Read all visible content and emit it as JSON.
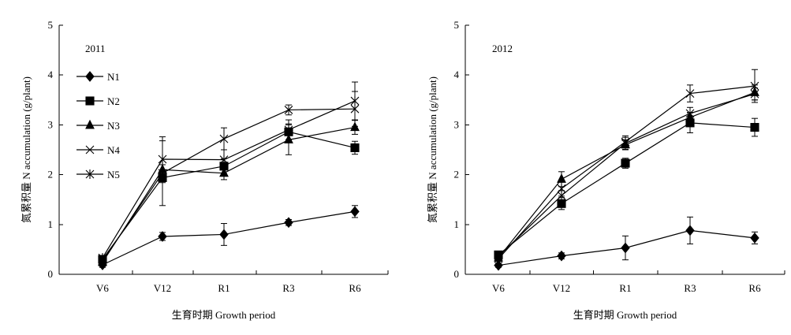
{
  "chart_data": [
    {
      "type": "line",
      "panel_label": "2011",
      "categories": [
        "V6",
        "V12",
        "R1",
        "R3",
        "R6"
      ],
      "xlabel": "生育时期 Growth period",
      "ylabel": "氮累积量 N accumulation (g/plant)",
      "ylim": [
        0,
        5
      ],
      "yticks": [
        "0",
        "1",
        "2",
        "3",
        "4",
        "5"
      ],
      "legend_position": "top-left",
      "series": [
        {
          "name": "N1",
          "marker": "diamond",
          "values": [
            0.19,
            0.76,
            0.8,
            1.04,
            1.26
          ],
          "errors": [
            0.05,
            0.08,
            0.22,
            0.06,
            0.12
          ]
        },
        {
          "name": "N2",
          "marker": "square",
          "values": [
            0.3,
            1.94,
            2.17,
            2.86,
            2.54
          ],
          "errors": [
            0.05,
            0.1,
            0.15,
            0.16,
            0.13
          ]
        },
        {
          "name": "N3",
          "marker": "triangle",
          "values": [
            0.24,
            2.1,
            2.03,
            2.7,
            2.95
          ],
          "errors": [
            0.05,
            0.1,
            0.13,
            0.3,
            0.14
          ]
        },
        {
          "name": "N4",
          "marker": "cross",
          "values": [
            0.27,
            2.03,
            2.72,
            3.3,
            3.32
          ],
          "errors": [
            0.05,
            0.65,
            0.22,
            0.1,
            0.35
          ]
        },
        {
          "name": "N5",
          "marker": "asterisk",
          "values": [
            0.33,
            2.31,
            2.3,
            2.9,
            3.48
          ],
          "errors": [
            0.05,
            0.45,
            0.2,
            0.2,
            0.38
          ]
        }
      ]
    },
    {
      "type": "line",
      "panel_label": "2012",
      "categories": [
        "V6",
        "V12",
        "R1",
        "R3",
        "R6"
      ],
      "xlabel": "生育时期 Growth period",
      "ylabel": "氮累积量 N accumulation (g/plant)",
      "ylim": [
        0,
        5
      ],
      "yticks": [
        "0",
        "1",
        "2",
        "3",
        "4",
        "5"
      ],
      "series": [
        {
          "name": "N1",
          "marker": "diamond",
          "values": [
            0.18,
            0.37,
            0.53,
            0.88,
            0.73
          ],
          "errors": [
            0.04,
            0.06,
            0.24,
            0.27,
            0.12
          ]
        },
        {
          "name": "N2",
          "marker": "square",
          "values": [
            0.39,
            1.42,
            2.23,
            3.04,
            2.95
          ],
          "errors": [
            0.05,
            0.12,
            0.1,
            0.2,
            0.18
          ]
        },
        {
          "name": "N3",
          "marker": "triangle",
          "values": [
            0.33,
            1.91,
            2.6,
            3.15,
            3.65
          ],
          "errors": [
            0.05,
            0.15,
            0.1,
            0.1,
            0.15
          ]
        },
        {
          "name": "N4",
          "marker": "cross",
          "values": [
            0.36,
            1.58,
            2.63,
            3.23,
            3.62
          ],
          "errors": [
            0.05,
            0.1,
            0.12,
            0.12,
            0.12
          ]
        },
        {
          "name": "N5",
          "marker": "asterisk",
          "values": [
            0.31,
            1.72,
            2.66,
            3.63,
            3.78
          ],
          "errors": [
            0.05,
            0.15,
            0.12,
            0.17,
            0.33
          ]
        }
      ]
    }
  ]
}
